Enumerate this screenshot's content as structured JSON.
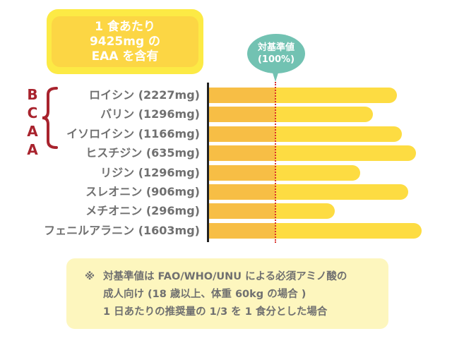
{
  "header_box": {
    "lines": [
      "1 食あたり",
      "9425mg の",
      "EAA を含有"
    ]
  },
  "reference_bubble": {
    "lines": [
      "対基準値",
      "(100%)"
    ]
  },
  "bcaa_label": [
    "B",
    "C",
    "A",
    "A"
  ],
  "colors": {
    "base": "#F7BE45",
    "excess": "#FDDC42",
    "reference_line": "#D9302A",
    "bubble": "#72C2B2",
    "bcaa": "#A8232D"
  },
  "chart_data": {
    "type": "bar",
    "orientation": "horizontal",
    "categories": [
      "ロイシン (2227mg)",
      "バリン (1296mg)",
      "イソロイシン (1166mg)",
      "ヒスチジン (635mg)",
      "リジン (1296mg)",
      "スレオニン (906mg)",
      "メチオニン (296mg)",
      "フェニルアラニン (1603mg)"
    ],
    "values": [
      283,
      247,
      290,
      312,
      228,
      300,
      189,
      320
    ],
    "unit": "% of reference",
    "reference_value": 100,
    "xlim": [
      0,
      320
    ],
    "grid": false
  },
  "note": {
    "mark": "※",
    "lines": [
      "対基準値は FAO/WHO/UNU による必須アミノ酸の",
      "成人向け (18 歳以上、体重 60kg の場合 )",
      "1 日あたりの推奨量の 1/3 を 1 食分とした場合"
    ]
  }
}
